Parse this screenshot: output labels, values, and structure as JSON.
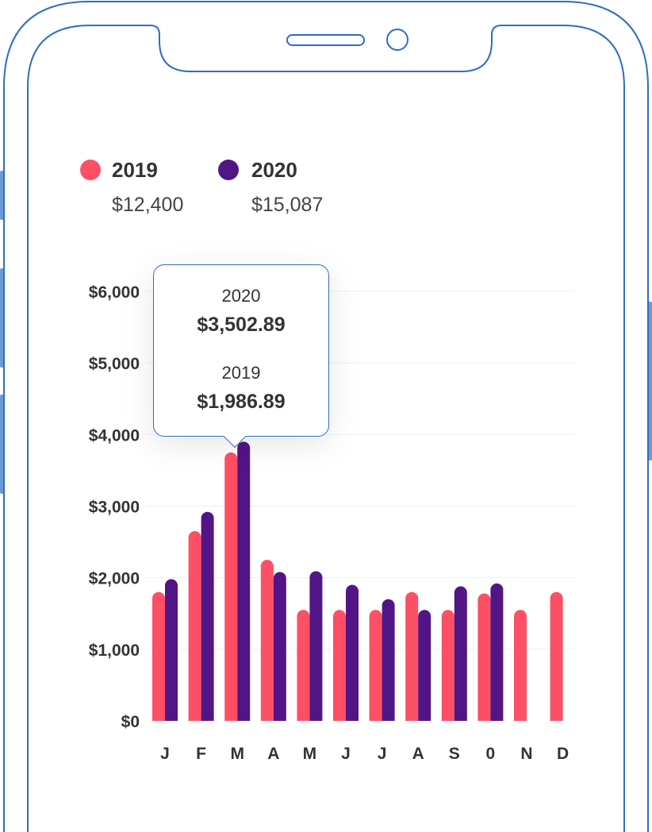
{
  "legend": [
    {
      "year": "2019",
      "total": "$12,400",
      "color": "#fd4f65"
    },
    {
      "year": "2020",
      "total": "$15,087",
      "color": "#521585"
    }
  ],
  "tooltip": {
    "entries": [
      {
        "label": "2020",
        "value": "$3,502.89"
      },
      {
        "label": "2019",
        "value": "$1,986.89"
      }
    ]
  },
  "chart_data": {
    "type": "bar",
    "categories": [
      "J",
      "F",
      "M",
      "A",
      "M",
      "J",
      "J",
      "A",
      "S",
      "0",
      "N",
      "D"
    ],
    "series": [
      {
        "name": "2019",
        "color": "#fd4f65",
        "values": [
          1800,
          2650,
          3750,
          2250,
          1550,
          1550,
          1550,
          1800,
          1550,
          1780,
          1550,
          1800
        ]
      },
      {
        "name": "2020",
        "color": "#521585",
        "values": [
          1980,
          2920,
          3900,
          2080,
          2090,
          1900,
          1700,
          1550,
          1880,
          1920,
          null,
          null
        ]
      }
    ],
    "yticks": [
      "$0",
      "$1,000",
      "$2,000",
      "$3,000",
      "$4,000",
      "$5,000",
      "$6,000"
    ],
    "ylim": [
      0,
      6000
    ],
    "grid": true,
    "legend": "top-left"
  },
  "colors": {
    "phone_outline": "#2f6dc6",
    "grid": "#eeeeee",
    "axis_text": "#333333"
  }
}
